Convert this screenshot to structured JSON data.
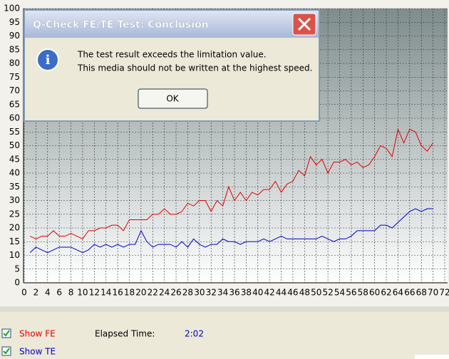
{
  "chart_data": {
    "type": "line",
    "x": [
      1,
      2,
      3,
      4,
      5,
      6,
      7,
      8,
      9,
      10,
      11,
      12,
      13,
      14,
      15,
      16,
      17,
      18,
      19,
      20,
      21,
      22,
      23,
      24,
      25,
      26,
      27,
      28,
      29,
      30,
      31,
      32,
      33,
      34,
      35,
      36,
      37,
      38,
      39,
      40,
      41,
      42,
      43,
      44,
      45,
      46,
      47,
      48,
      49,
      50,
      51,
      52,
      53,
      54,
      55,
      56,
      57,
      58,
      59,
      60,
      61,
      62,
      63,
      64,
      65,
      66,
      67,
      68,
      69,
      70
    ],
    "series": [
      {
        "name": "FE",
        "color": "#e00000",
        "values": [
          17,
          16,
          17,
          17,
          19,
          17,
          17,
          18,
          17,
          16,
          19,
          19,
          20,
          20,
          21,
          21,
          19,
          23,
          23,
          23,
          23,
          25,
          25,
          27,
          25,
          25,
          26,
          29,
          28,
          30,
          30,
          26,
          30,
          28,
          35,
          30,
          33,
          30,
          33,
          32,
          34,
          34,
          37,
          33,
          36,
          37,
          41,
          39,
          46,
          43,
          45,
          40,
          44,
          44,
          45,
          43,
          44,
          42,
          43,
          46,
          50,
          49,
          46,
          56,
          51,
          56,
          55,
          50,
          48,
          51
        ]
      },
      {
        "name": "TE",
        "color": "#0000c0",
        "values": [
          11,
          13,
          12,
          11,
          12,
          13,
          13,
          13,
          12,
          11,
          12,
          14,
          13,
          14,
          13,
          14,
          13,
          14,
          14,
          19,
          15,
          13,
          14,
          14,
          14,
          13,
          15,
          13,
          16,
          14,
          13,
          14,
          14,
          16,
          15,
          15,
          14,
          15,
          15,
          15,
          16,
          15,
          16,
          17,
          16,
          16,
          16,
          16,
          16,
          16,
          17,
          16,
          15,
          16,
          16,
          17,
          19,
          19,
          19,
          19,
          21,
          21,
          20,
          22,
          24,
          26,
          27,
          26,
          27,
          27
        ]
      }
    ],
    "xlim": [
      0,
      72
    ],
    "ylim": [
      0,
      100
    ],
    "xticks": [
      0,
      2,
      4,
      6,
      8,
      10,
      12,
      14,
      16,
      18,
      20,
      22,
      24,
      26,
      28,
      30,
      32,
      34,
      36,
      38,
      40,
      42,
      44,
      46,
      48,
      50,
      52,
      54,
      56,
      58,
      60,
      62,
      64,
      66,
      68,
      70,
      72
    ],
    "yticks": [
      0,
      5,
      10,
      15,
      20,
      25,
      30,
      35,
      40,
      45,
      50,
      55,
      60,
      65,
      70,
      75,
      80,
      85,
      90,
      95,
      100
    ],
    "grid": true
  },
  "dialog": {
    "title": "Q-Check FE/TE Test: Conclusion",
    "message": [
      "The test result exceeds the limitation value.",
      "This media should not be written at the highest speed."
    ],
    "button": "OK"
  },
  "footer": {
    "show_fe": "Show FE",
    "show_te": "Show TE",
    "elapsed_label": "Elapsed Time:",
    "elapsed_value": "2:02"
  }
}
